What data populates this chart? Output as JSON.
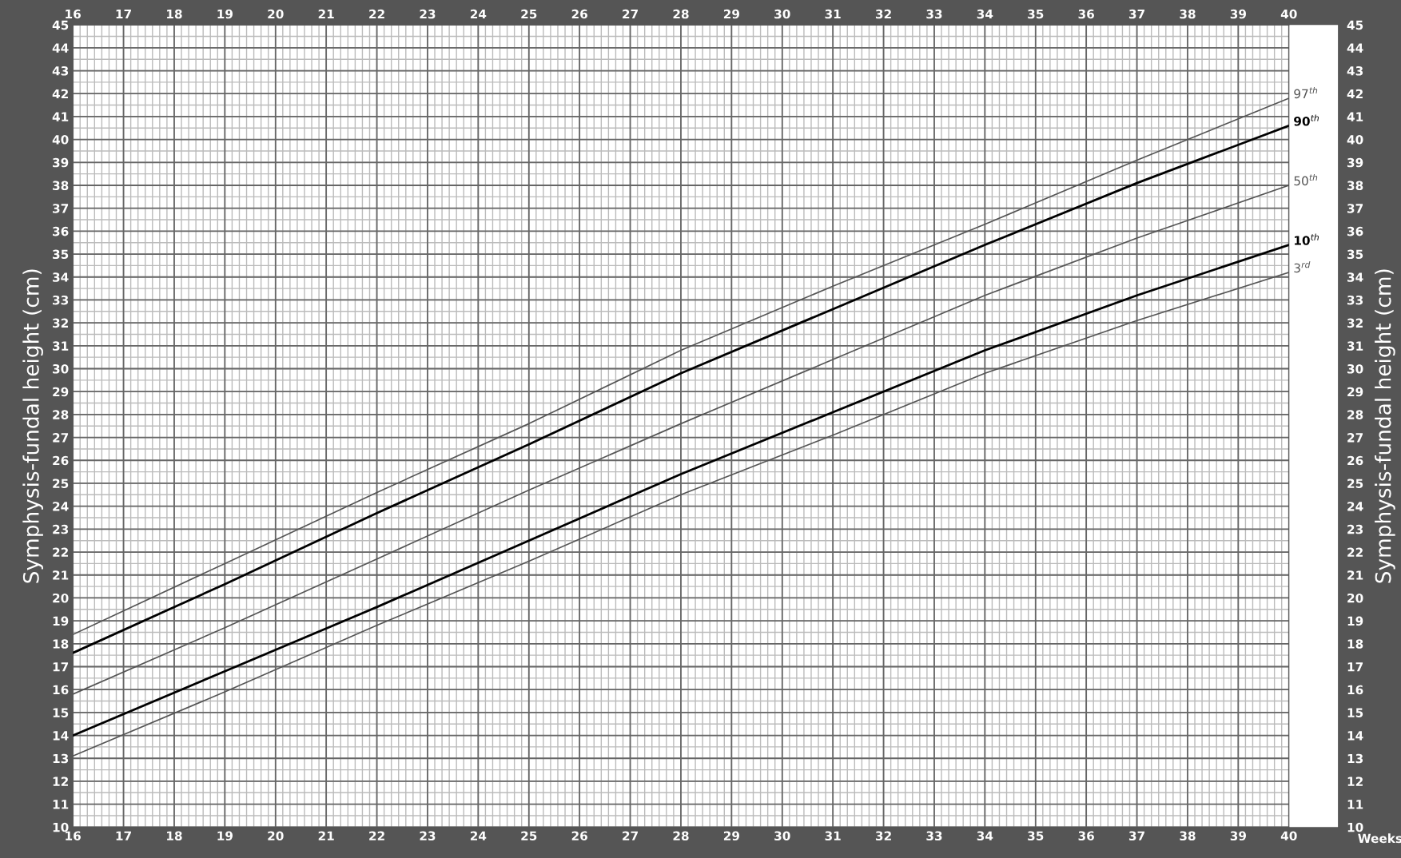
{
  "chart_data": {
    "type": "line",
    "xlabel": "Weeks",
    "ylabel": "Symphysis-fundal height (cm)",
    "y2label": "Symphysis-fundal height (cm)",
    "x": [
      16,
      19,
      22,
      25,
      28,
      31,
      34,
      37,
      40
    ],
    "series": [
      {
        "name": "97$^{th}$",
        "color": "#555555",
        "values": [
          18.4,
          21.5,
          24.6,
          27.6,
          30.8,
          33.6,
          36.3,
          39.1,
          41.8
        ]
      },
      {
        "name": "90$^{th}$",
        "color": "#000000",
        "values": [
          17.6,
          20.6,
          23.7,
          26.7,
          29.8,
          32.6,
          35.4,
          38.1,
          40.6
        ]
      },
      {
        "name": "50$^{th}$",
        "color": "#555555",
        "values": [
          15.8,
          18.7,
          21.7,
          24.7,
          27.6,
          30.4,
          33.2,
          35.7,
          38.0
        ]
      },
      {
        "name": "10$^{th}$",
        "color": "#000000",
        "values": [
          14.0,
          16.8,
          19.6,
          22.5,
          25.4,
          28.1,
          30.8,
          33.2,
          35.4
        ]
      },
      {
        "name": "3$^{rd}$",
        "color": "#555555",
        "values": [
          13.1,
          15.9,
          18.8,
          21.6,
          24.5,
          27.1,
          29.8,
          32.1,
          34.2
        ]
      }
    ],
    "xlim": [
      16,
      40
    ],
    "xticks": [
      16,
      17,
      18,
      19,
      20,
      21,
      22,
      23,
      24,
      25,
      26,
      27,
      28,
      29,
      30,
      31,
      32,
      33,
      34,
      35,
      36,
      37,
      38,
      39,
      40
    ],
    "x2lim": [
      16,
      40
    ],
    "x2ticks": [
      16,
      17,
      18,
      19,
      20,
      21,
      22,
      23,
      24,
      25,
      26,
      27,
      28,
      29,
      30,
      31,
      32,
      33,
      34,
      35,
      36,
      37,
      38,
      39,
      40
    ],
    "ylim": [
      10,
      45
    ],
    "yticks": [
      10,
      11,
      12,
      13,
      14,
      15,
      16,
      17,
      18,
      19,
      20,
      21,
      22,
      23,
      24,
      25,
      26,
      27,
      28,
      29,
      30,
      31,
      32,
      33,
      34,
      35,
      36,
      37,
      38,
      39,
      40,
      41,
      42,
      43,
      44,
      45
    ],
    "y2lim": [
      10,
      45
    ],
    "y2ticks": [
      10,
      11,
      12,
      13,
      14,
      15,
      16,
      17,
      18,
      19,
      20,
      21,
      22,
      23,
      24,
      25,
      26,
      27,
      28,
      29,
      30,
      31,
      32,
      33,
      34,
      35,
      36,
      37,
      38,
      39,
      40,
      41,
      42,
      43,
      44,
      45
    ],
    "grid": true,
    "legend": false,
    "marker": "none",
    "line_style": "solid"
  }
}
